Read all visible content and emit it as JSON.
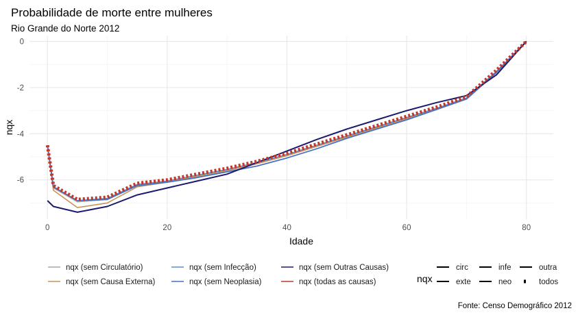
{
  "chart_data": {
    "type": "line",
    "title": "Probabilidade de morte entre mulheres",
    "subtitle": "Rio Grande do Norte 2012",
    "xlabel": "Idade",
    "ylabel": "nqx",
    "caption": "Fonte: Censo Demográfico 2012",
    "xlim": [
      -3,
      84.5
    ],
    "ylim": [
      -7.7,
      0.25
    ],
    "x_ticks": [
      0,
      20,
      40,
      60,
      80
    ],
    "y_ticks": [
      0,
      -2,
      -4,
      -6
    ],
    "grid": true,
    "legend_position": "bottom",
    "x": [
      0,
      1,
      5,
      10,
      15,
      20,
      25,
      30,
      35,
      40,
      45,
      50,
      55,
      60,
      65,
      70,
      75,
      80
    ],
    "series": [
      {
        "name": "nqx (sem Circulatório)",
        "color": "#a5a5a5",
        "linetype": "circ",
        "values": [
          -4.5,
          -6.35,
          -6.95,
          -6.85,
          -6.2,
          -6.05,
          -5.8,
          -5.55,
          -5.25,
          -4.9,
          -4.5,
          -4.1,
          -3.7,
          -3.3,
          -2.9,
          -2.45,
          -1.3,
          0
        ]
      },
      {
        "name": "nqx (sem Causa Externa)",
        "color": "#c8915a",
        "linetype": "exte",
        "values": [
          -4.5,
          -6.45,
          -7.2,
          -7.0,
          -6.3,
          -6.1,
          -5.85,
          -5.6,
          -5.3,
          -4.95,
          -4.55,
          -4.15,
          -3.75,
          -3.35,
          -2.95,
          -2.45,
          -1.3,
          0
        ]
      },
      {
        "name": "nqx (sem Infecção)",
        "color": "#5b8ccc",
        "linetype": "infe",
        "values": [
          -4.5,
          -6.3,
          -6.9,
          -6.8,
          -6.2,
          -6.05,
          -5.8,
          -5.55,
          -5.25,
          -4.9,
          -4.5,
          -4.1,
          -3.7,
          -3.3,
          -2.9,
          -2.45,
          -1.3,
          0
        ]
      },
      {
        "name": "nqx (sem Neoplasia)",
        "color": "#4472c4",
        "linetype": "neo",
        "values": [
          -4.5,
          -6.3,
          -6.9,
          -6.85,
          -6.25,
          -6.1,
          -5.9,
          -5.65,
          -5.4,
          -5.05,
          -4.65,
          -4.2,
          -3.8,
          -3.4,
          -2.95,
          -2.5,
          -1.35,
          0
        ]
      },
      {
        "name": "nqx (sem Outras Causas)",
        "color": "#1a1a6e",
        "linetype": "outra",
        "values": [
          -6.9,
          -7.15,
          -7.4,
          -7.15,
          -6.65,
          -6.35,
          -6.05,
          -5.75,
          -5.25,
          -4.75,
          -4.25,
          -3.8,
          -3.4,
          -3.0,
          -2.65,
          -2.35,
          -1.45,
          0
        ]
      },
      {
        "name": "nqx (todas as causas)",
        "color": "#c0392b",
        "linetype": "todos",
        "values": [
          -4.5,
          -6.25,
          -6.85,
          -6.75,
          -6.15,
          -6.0,
          -5.75,
          -5.5,
          -5.2,
          -4.85,
          -4.45,
          -4.05,
          -3.65,
          -3.25,
          -2.85,
          -2.4,
          -1.25,
          0
        ]
      }
    ],
    "linetype_legend": {
      "title": "nqx",
      "items": [
        "circ",
        "infe",
        "outra",
        "exte",
        "neo",
        "todos"
      ]
    }
  }
}
